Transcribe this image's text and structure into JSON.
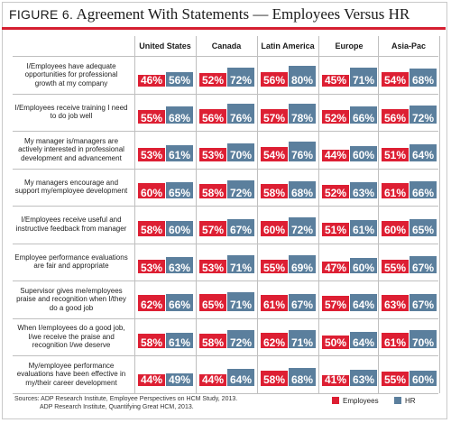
{
  "header": {
    "figure_number": "FIGURE 6.",
    "title": "Agreement With Statements — Employees Versus HR"
  },
  "chart_data": {
    "type": "bar",
    "title": "Agreement With Statements — Employees Versus HR",
    "regions": [
      "United States",
      "Canada",
      "Latin America",
      "Europe",
      "Asia-Pac"
    ],
    "series_names": [
      "Employees",
      "HR"
    ],
    "colors": {
      "Employees": "#dd1f33",
      "HR": "#5b7f9d"
    },
    "ylim": [
      0,
      100
    ],
    "statements": [
      {
        "label": "I/Employees have adequate opportunities for professional growth at my company",
        "employees": [
          46,
          52,
          56,
          45,
          54
        ],
        "hr": [
          56,
          72,
          80,
          71,
          68
        ]
      },
      {
        "label": "I/Employees receive training I need to do job well",
        "employees": [
          55,
          56,
          57,
          52,
          56
        ],
        "hr": [
          68,
          76,
          78,
          66,
          72
        ]
      },
      {
        "label": "My manager is/managers are actively interested in professional development and advancement",
        "employees": [
          53,
          53,
          54,
          44,
          51
        ],
        "hr": [
          61,
          70,
          76,
          60,
          64
        ]
      },
      {
        "label": "My managers encourage and support my/employee development",
        "employees": [
          60,
          58,
          58,
          52,
          61
        ],
        "hr": [
          65,
          72,
          68,
          63,
          66
        ]
      },
      {
        "label": "I/Employees receive useful and instructive feedback from manager",
        "employees": [
          58,
          57,
          60,
          51,
          60
        ],
        "hr": [
          60,
          67,
          72,
          61,
          65
        ]
      },
      {
        "label": "Employee performance evaluations are fair and appropriate",
        "employees": [
          53,
          53,
          55,
          47,
          55
        ],
        "hr": [
          63,
          71,
          69,
          60,
          67
        ]
      },
      {
        "label": "Supervisor gives me/employees praise and recognition when I/they do a good job",
        "employees": [
          62,
          65,
          61,
          57,
          63
        ],
        "hr": [
          66,
          71,
          67,
          64,
          67
        ]
      },
      {
        "label": "When I/employees do a good job, I/we receive the praise and recognition I/we deserve",
        "employees": [
          58,
          58,
          62,
          50,
          61
        ],
        "hr": [
          61,
          72,
          71,
          64,
          70
        ]
      },
      {
        "label": "My/employee performance evaluations have been effective in my/their career development",
        "employees": [
          44,
          44,
          58,
          41,
          55
        ],
        "hr": [
          49,
          64,
          68,
          63,
          60
        ]
      }
    ]
  },
  "footer": {
    "sources_line1": "Sources: ADP Research Institute, Employee Perspectives on HCM Study, 2013.",
    "sources_line2": "ADP Research Institute, Quantifying Great HCM, 2013."
  },
  "legend": {
    "employees_label": "Employees",
    "hr_label": "HR"
  }
}
